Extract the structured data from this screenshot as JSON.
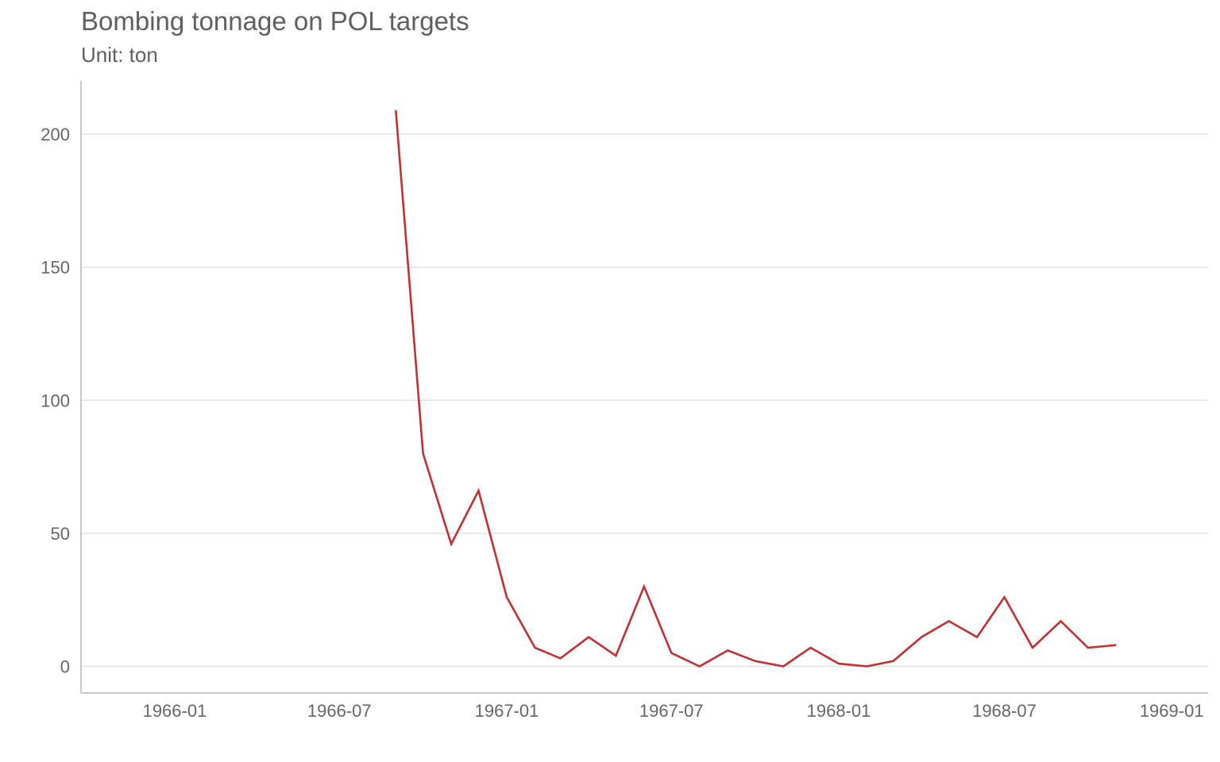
{
  "chart_data": {
    "type": "line",
    "title": "Bombing tonnage on POL targets",
    "subtitle": "Unit: ton",
    "xlabel": "",
    "ylabel": "",
    "x_axis_type": "date",
    "xlim": [
      "1965-09-20",
      "1969-02-10"
    ],
    "ylim": [
      -10,
      220
    ],
    "x_ticks": [
      "1966-01",
      "1966-07",
      "1967-01",
      "1967-07",
      "1968-01",
      "1968-07",
      "1969-01"
    ],
    "y_ticks": [
      0,
      50,
      100,
      150,
      200
    ],
    "grid": true,
    "series_color": "#c62f32",
    "series": [
      {
        "x": [
          "1966-09",
          "1966-10",
          "1966-11",
          "1966-12",
          "1967-01",
          "1967-02",
          "1967-03",
          "1967-04",
          "1967-05",
          "1967-06",
          "1967-07",
          "1967-08",
          "1967-09",
          "1967-10",
          "1967-11",
          "1967-12",
          "1968-01",
          "1968-02",
          "1968-03",
          "1968-04",
          "1968-05",
          "1968-06",
          "1968-07",
          "1968-08",
          "1968-09",
          "1968-10",
          "1968-11"
        ],
        "values": [
          209,
          80,
          46,
          66,
          26,
          7,
          3,
          11,
          4,
          30,
          5,
          0,
          6,
          2,
          0,
          7,
          1,
          0,
          2,
          11,
          17,
          11,
          26,
          7,
          17,
          7,
          8
        ]
      }
    ]
  }
}
